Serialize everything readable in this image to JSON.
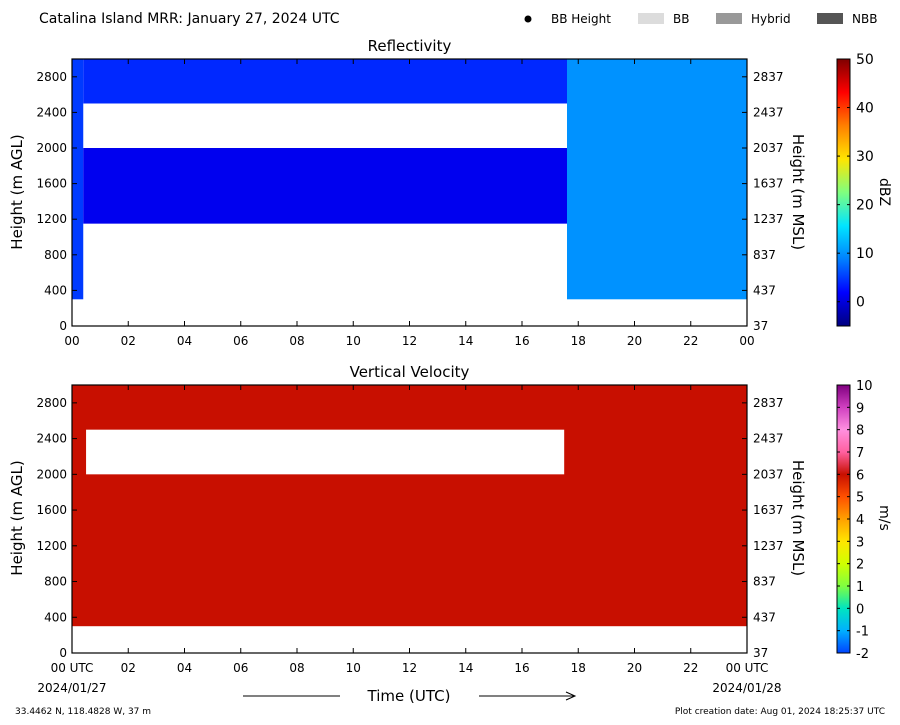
{
  "header": {
    "title": "Catalina Island MRR:  January 27, 2024 UTC",
    "legend": [
      {
        "label": "BB Height",
        "swatch": "dot",
        "color": "#000000"
      },
      {
        "label": "BB",
        "swatch": "box",
        "color": "#dcdcdc"
      },
      {
        "label": "Hybrid",
        "swatch": "box",
        "color": "#999999"
      },
      {
        "label": "NBB",
        "swatch": "box",
        "color": "#555555"
      }
    ]
  },
  "footer": {
    "location": "33.4462 N, 118.4828 W, 37 m",
    "creation_date": "Plot creation date: Aug 01, 2024 18:25:37 UTC",
    "x_axis_title": "Time (UTC)",
    "start_date": "2024/01/27",
    "end_date": "2024/01/28"
  },
  "chart_data": [
    {
      "type": "heatmap",
      "title": "Reflectivity",
      "ylabel": "Height (m AGL)",
      "ylabel_right": "Height (m MSL)",
      "ylim": [
        0,
        3000
      ],
      "yticks": [
        0,
        400,
        800,
        1200,
        1600,
        2000,
        2400,
        2800
      ],
      "yticks_right": [
        "37",
        "437",
        "837",
        "1237",
        "1637",
        "2037",
        "2437",
        "2837"
      ],
      "xlim": [
        0,
        24
      ],
      "xtick_labels": [
        "00",
        "02",
        "04",
        "06",
        "08",
        "10",
        "12",
        "14",
        "16",
        "18",
        "20",
        "22",
        "00"
      ],
      "colorbar": {
        "label": "dBZ",
        "min": -5,
        "max": 50,
        "ticks": [
          0,
          10,
          20,
          30,
          40,
          50
        ],
        "colors": [
          "#00007f",
          "#0000ff",
          "#0080ff",
          "#00e5ff",
          "#7fff7f",
          "#ffe500",
          "#ff8000",
          "#ff0000",
          "#7f0000"
        ]
      },
      "regions": [
        {
          "x": [
            0,
            0.4
          ],
          "y": [
            300,
            3000
          ],
          "value": 5
        },
        {
          "x": [
            0.4,
            17.6
          ],
          "y": [
            1150,
            2000
          ],
          "value": 1
        },
        {
          "x": [
            0.4,
            17.6
          ],
          "y": [
            2500,
            3000
          ],
          "value": 4
        },
        {
          "x": [
            17.6,
            24
          ],
          "y": [
            300,
            3000
          ],
          "value": 10
        }
      ],
      "gaps": [
        {
          "x": [
            0.5,
            17.5
          ],
          "y": [
            2000,
            2500
          ],
          "value": null
        }
      ]
    },
    {
      "type": "heatmap",
      "title": "Vertical Velocity",
      "ylabel": "Height (m AGL)",
      "ylabel_right": "Height (m MSL)",
      "ylim": [
        0,
        3000
      ],
      "yticks": [
        0,
        400,
        800,
        1200,
        1600,
        2000,
        2400,
        2800
      ],
      "yticks_right": [
        "37",
        "437",
        "837",
        "1237",
        "1637",
        "2037",
        "2437",
        "2837"
      ],
      "xlim": [
        0,
        24
      ],
      "xtick_labels": [
        "00 UTC",
        "02",
        "04",
        "06",
        "08",
        "10",
        "12",
        "14",
        "16",
        "18",
        "20",
        "22",
        "00 UTC"
      ],
      "colorbar": {
        "label": "m/s",
        "min": -2,
        "max": 10,
        "ticks": [
          -2,
          -1,
          0,
          1,
          2,
          3,
          4,
          5,
          6,
          7,
          8,
          9,
          10
        ],
        "colors": [
          "#0044ff",
          "#00b0ff",
          "#00e5c0",
          "#80ff40",
          "#d0ff00",
          "#ffe500",
          "#ffa000",
          "#ff5000",
          "#c80f00",
          "#ff60a0",
          "#ff90e0",
          "#d040c0",
          "#800080"
        ]
      },
      "regions": [
        {
          "x": [
            0,
            24
          ],
          "y": [
            300,
            3000
          ],
          "value": 6
        }
      ],
      "gaps": [
        {
          "x": [
            0.5,
            17.5
          ],
          "y": [
            2000,
            2500
          ],
          "value": null
        }
      ]
    }
  ]
}
